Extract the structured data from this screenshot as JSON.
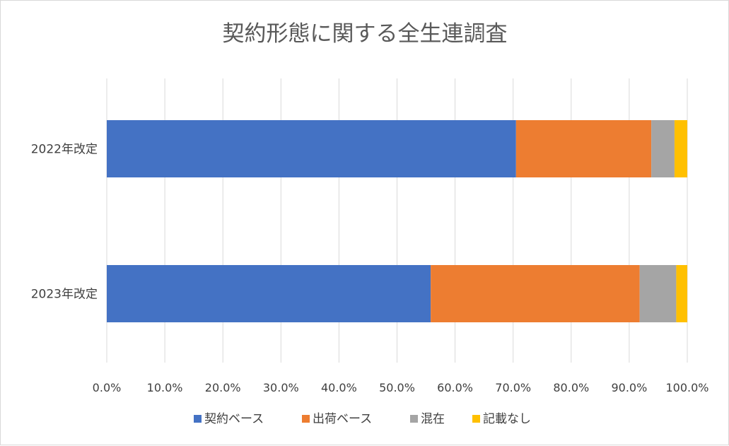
{
  "chart_data": {
    "type": "bar",
    "orientation": "horizontal",
    "stacked": "100%",
    "title": "契約形態に関する全生連調査",
    "categories": [
      "2022年改定",
      "2023年改定"
    ],
    "series": [
      {
        "name": "契約ベース",
        "color": "#4472c4",
        "values": [
          70.5,
          55.8
        ]
      },
      {
        "name": "出荷ベース",
        "color": "#ed7d31",
        "values": [
          23.3,
          36.0
        ]
      },
      {
        "name": "混在",
        "color": "#a5a5a5",
        "values": [
          4.0,
          6.3
        ]
      },
      {
        "name": "記載なし",
        "color": "#ffc000",
        "values": [
          2.2,
          1.9
        ]
      }
    ],
    "xlim": [
      0,
      100
    ],
    "xticks": [
      "0.0%",
      "10.0%",
      "20.0%",
      "30.0%",
      "40.0%",
      "50.0%",
      "60.0%",
      "70.0%",
      "80.0%",
      "90.0%",
      "100.0%"
    ],
    "grid": "vertical",
    "legend_position": "bottom"
  }
}
